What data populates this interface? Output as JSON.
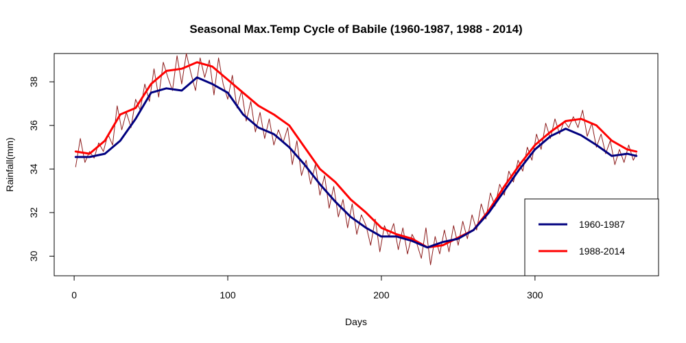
{
  "chart_data": {
    "type": "line",
    "title": "Seasonal Max.Temp Cycle of Babile (1960-1987, 1988 - 2014)",
    "xlabel": "Days",
    "ylabel": "Rainfall(mm)",
    "xlim": [
      -13,
      380
    ],
    "ylim": [
      29.1,
      39.3
    ],
    "xticks": [
      0,
      100,
      200,
      300
    ],
    "yticks": [
      30,
      32,
      34,
      36,
      38
    ],
    "grid": false,
    "legend_position": "bottom-right",
    "series": [
      {
        "name": "1960-1987",
        "color": "#00007f",
        "x": [
          1,
          10,
          20,
          30,
          40,
          50,
          60,
          70,
          80,
          90,
          100,
          110,
          120,
          130,
          140,
          150,
          160,
          170,
          180,
          190,
          200,
          210,
          220,
          230,
          240,
          250,
          260,
          270,
          280,
          290,
          300,
          310,
          320,
          330,
          340,
          350,
          360,
          366
        ],
        "values": [
          34.55,
          34.55,
          34.7,
          35.3,
          36.3,
          37.5,
          37.7,
          37.6,
          38.2,
          37.9,
          37.5,
          36.5,
          35.9,
          35.6,
          35.0,
          34.2,
          33.3,
          32.5,
          31.8,
          31.3,
          30.9,
          30.9,
          30.7,
          30.4,
          30.65,
          30.8,
          31.2,
          32.0,
          33.0,
          34.0,
          34.9,
          35.5,
          35.85,
          35.55,
          35.1,
          34.6,
          34.7,
          34.6
        ]
      },
      {
        "name": "1988-2014",
        "color": "#ff0000",
        "x": [
          1,
          10,
          20,
          30,
          40,
          50,
          60,
          70,
          80,
          90,
          100,
          110,
          120,
          130,
          140,
          150,
          160,
          170,
          180,
          190,
          200,
          210,
          220,
          230,
          240,
          250,
          260,
          270,
          280,
          290,
          300,
          310,
          320,
          330,
          340,
          350,
          360,
          366
        ],
        "values": [
          34.8,
          34.7,
          35.3,
          36.5,
          36.8,
          37.9,
          38.5,
          38.6,
          38.9,
          38.7,
          38.1,
          37.5,
          36.9,
          36.5,
          36.0,
          35.0,
          34.0,
          33.4,
          32.6,
          32.0,
          31.3,
          31.0,
          30.8,
          30.4,
          30.5,
          30.85,
          31.2,
          32.1,
          33.2,
          34.2,
          35.1,
          35.7,
          36.2,
          36.3,
          36.0,
          35.3,
          34.9,
          34.8
        ]
      },
      {
        "name": "",
        "color": "#8b1a1a",
        "x": [
          1,
          4,
          7,
          10,
          13,
          16,
          19,
          22,
          25,
          28,
          31,
          34,
          37,
          40,
          43,
          46,
          49,
          52,
          55,
          58,
          61,
          64,
          67,
          70,
          73,
          76,
          79,
          82,
          85,
          88,
          91,
          94,
          97,
          100,
          103,
          106,
          109,
          112,
          115,
          118,
          121,
          124,
          127,
          130,
          133,
          136,
          139,
          142,
          145,
          148,
          151,
          154,
          157,
          160,
          163,
          166,
          169,
          172,
          175,
          178,
          181,
          184,
          187,
          190,
          193,
          196,
          199,
          202,
          205,
          208,
          211,
          214,
          217,
          220,
          223,
          226,
          229,
          232,
          235,
          238,
          241,
          244,
          247,
          250,
          253,
          256,
          259,
          262,
          265,
          268,
          271,
          274,
          277,
          280,
          283,
          286,
          289,
          292,
          295,
          298,
          301,
          304,
          307,
          310,
          313,
          316,
          319,
          322,
          325,
          328,
          331,
          334,
          337,
          340,
          343,
          346,
          349,
          352,
          355,
          358,
          361,
          364,
          366
        ],
        "values": [
          34.1,
          35.4,
          34.3,
          34.8,
          34.5,
          35.2,
          34.8,
          35.6,
          35.1,
          36.9,
          35.8,
          36.6,
          35.9,
          37.2,
          36.7,
          37.9,
          37.1,
          38.6,
          37.3,
          38.9,
          38.2,
          37.6,
          39.2,
          37.9,
          39.3,
          38.4,
          37.6,
          39.1,
          38.2,
          39.0,
          37.4,
          39.1,
          37.9,
          37.2,
          38.3,
          36.8,
          37.6,
          36.2,
          37.1,
          35.7,
          36.6,
          35.4,
          36.3,
          35.1,
          35.8,
          35.2,
          35.9,
          34.2,
          35.3,
          33.7,
          34.4,
          33.3,
          34.2,
          32.8,
          33.7,
          32.2,
          33.2,
          31.8,
          32.6,
          31.3,
          32.4,
          31.0,
          31.9,
          31.4,
          30.5,
          31.7,
          30.2,
          31.4,
          30.9,
          31.5,
          30.3,
          31.3,
          30.1,
          31.0,
          30.6,
          29.9,
          31.3,
          29.6,
          30.9,
          30.1,
          31.2,
          30.2,
          31.4,
          30.5,
          31.6,
          30.8,
          31.9,
          31.2,
          32.4,
          31.7,
          32.9,
          32.3,
          33.3,
          32.8,
          33.9,
          33.4,
          34.4,
          33.9,
          35.0,
          34.4,
          35.6,
          34.9,
          36.1,
          35.4,
          36.3,
          35.6,
          36.2,
          35.9,
          36.4,
          35.9,
          36.7,
          35.5,
          36.1,
          35.0,
          35.6,
          34.7,
          35.3,
          34.2,
          34.9,
          34.3,
          35.1,
          34.4,
          34.7
        ]
      }
    ],
    "legend": [
      {
        "label": "1960-1987",
        "color": "#00007f"
      },
      {
        "label": "1988-2014",
        "color": "#ff0000"
      }
    ]
  }
}
